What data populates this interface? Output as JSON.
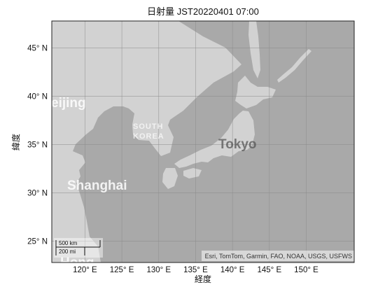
{
  "title": "日射量 JST20220401 07:00",
  "axes": {
    "xlabel": "経度",
    "ylabel": "緯度",
    "xlim": [
      115.5,
      156.5
    ],
    "ylim": [
      22.8,
      47.8
    ],
    "xticks": [
      "120° E",
      "125° E",
      "130° E",
      "135° E",
      "140° E",
      "145° E",
      "150° E"
    ],
    "yticks": [
      "25° N",
      "30° N",
      "35° N",
      "40° N",
      "45° N"
    ],
    "grid": true
  },
  "basemap_labels": {
    "beijing": "eijing",
    "south_korea_line1": "SOUTH",
    "south_korea_line2": "KOREA",
    "tokyo": "Tokyo",
    "shanghai": "Shanghai",
    "bottom_partial": "Hong"
  },
  "attribution": "Esri, TomTom, Garmin, FAO, NOAA, USGS, USFWS",
  "scalebar": {
    "km_label": "500 km",
    "mi_label": "200 mi"
  },
  "colors": {
    "sea": "#a9a9a9",
    "land": "#d2d2d2",
    "grid": "#8a8a8a"
  }
}
